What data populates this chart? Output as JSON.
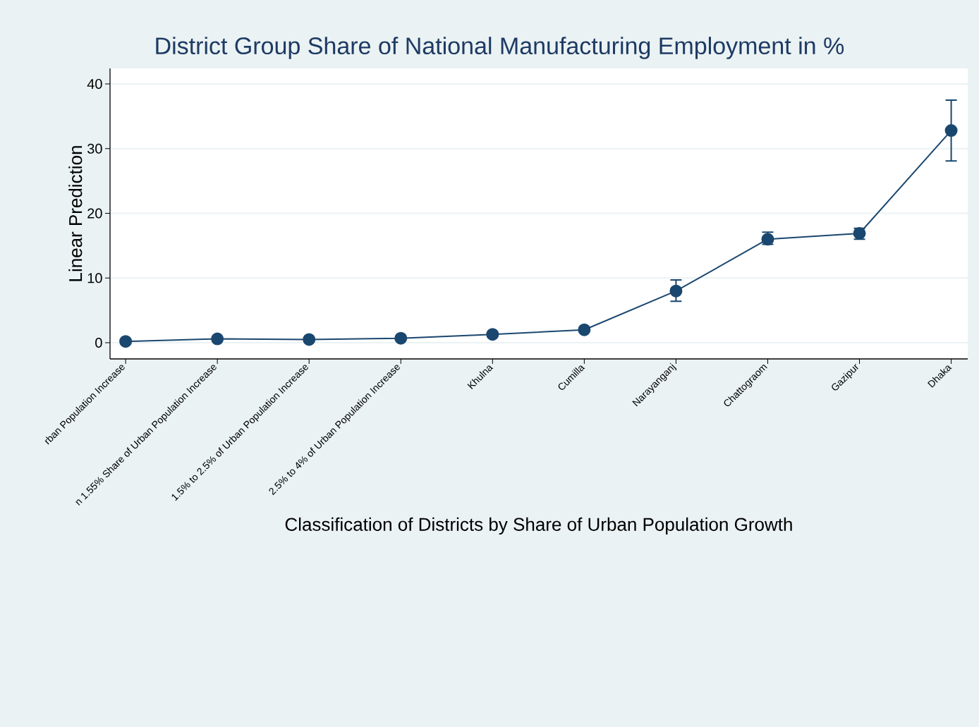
{
  "chart_data": {
    "type": "line",
    "title": "District Group Share of National Manufacturing Employment in %",
    "xlabel": "Classification of Districts by Share of Urban Population Growth",
    "ylabel": "Linear Prediction",
    "categories": [
      "rban Population Increase",
      "n 1.55% Share of Urban Population Increase",
      "1.5% to 2.5% of Urban Population Increase",
      "2.5% to 4% of Urban Population Increase",
      "Khulna",
      "Cumilla",
      "Narayanganj",
      "Chattograom",
      "Gazipur",
      "Dhaka"
    ],
    "series": [
      {
        "color": "#1a476f",
        "values": [
          0.2,
          0.6,
          0.5,
          0.7,
          1.3,
          2.0,
          8.0,
          16.0,
          16.9,
          32.8
        ],
        "errors": [
          null,
          null,
          null,
          null,
          null,
          null,
          [
            6.4,
            9.7
          ],
          [
            15.2,
            17.1
          ],
          [
            16.0,
            17.7
          ],
          [
            28.1,
            37.5
          ]
        ]
      }
    ],
    "ylim": [
      -2.5,
      42.4
    ],
    "yticks": [
      0,
      10,
      20,
      30,
      40
    ],
    "grid": "y",
    "marker": "circle",
    "line_style": "solid"
  }
}
